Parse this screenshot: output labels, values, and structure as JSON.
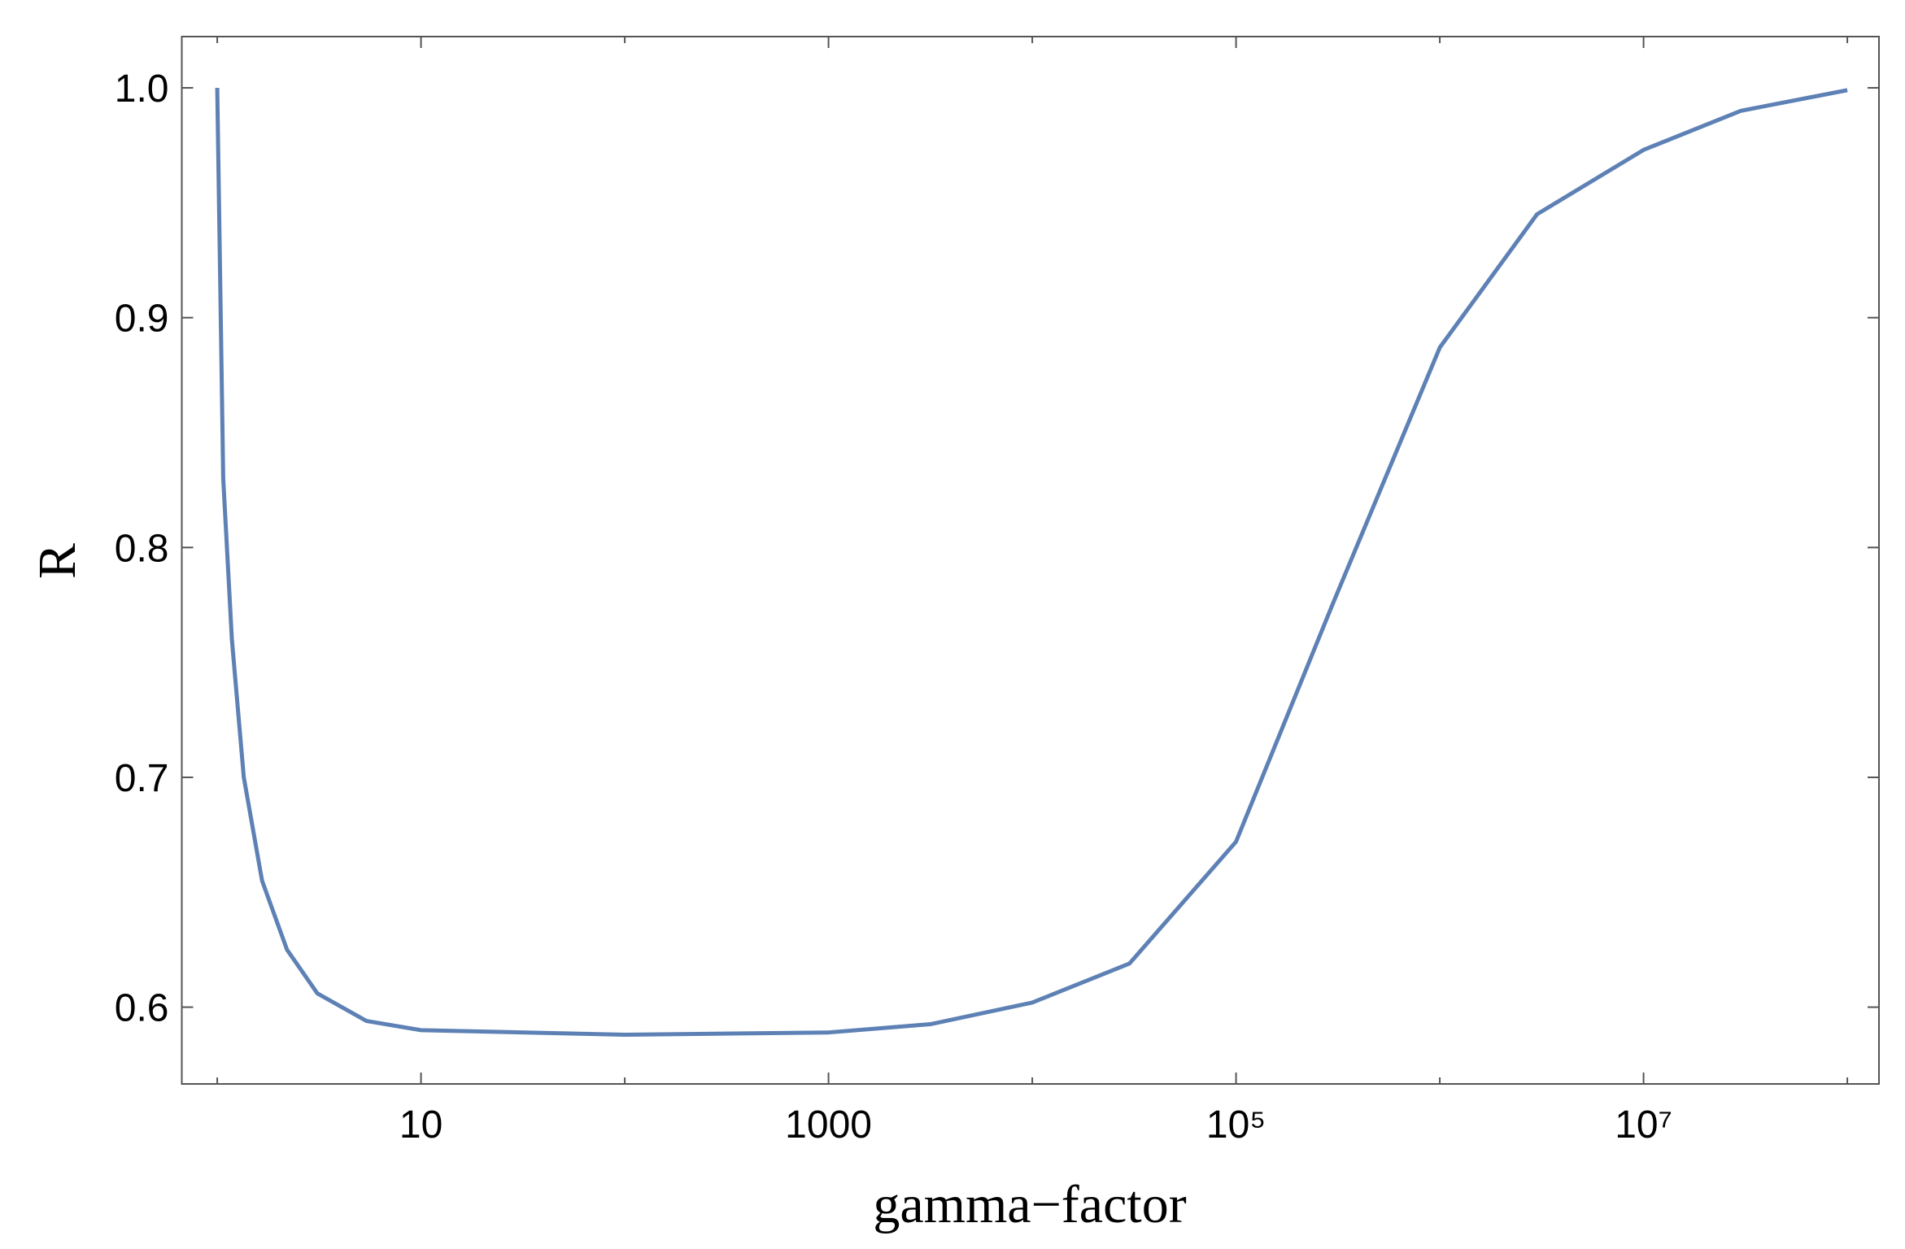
{
  "chart_data": {
    "type": "line",
    "xlabel": "gamma−factor",
    "ylabel": "R",
    "xscale": "log",
    "x": [
      1,
      1.07,
      1.18,
      1.35,
      1.66,
      2.2,
      3.1,
      5.4,
      10,
      100,
      1000,
      3162,
      10000,
      30000,
      100000,
      300000,
      1000000,
      3000000,
      10000000,
      30000000,
      100000000
    ],
    "series": [
      {
        "name": "R",
        "color": "#5e81b5",
        "values": [
          1.0,
          0.83,
          0.76,
          0.7,
          0.655,
          0.625,
          0.606,
          0.594,
          0.59,
          0.588,
          0.589,
          0.5926,
          0.602,
          0.619,
          0.672,
          0.776,
          0.887,
          0.945,
          0.973,
          0.99,
          0.999
        ]
      }
    ],
    "xlim": [
      0.67,
      143000000
    ],
    "ylim": [
      0.5666,
      1.0223
    ],
    "xticks": [
      {
        "value": 10,
        "label": "10"
      },
      {
        "value": 1000,
        "label": "1000"
      },
      {
        "value": 100000,
        "label": "10⁵"
      },
      {
        "value": 10000000,
        "label": "10⁷"
      }
    ],
    "xminorticks": [
      1,
      100,
      10000,
      1000000,
      100000000
    ],
    "yticks": [
      0.6,
      0.7,
      0.8,
      0.9,
      {
        "value": 1.0,
        "label": "1.0"
      }
    ],
    "frame_color": "#555555"
  }
}
